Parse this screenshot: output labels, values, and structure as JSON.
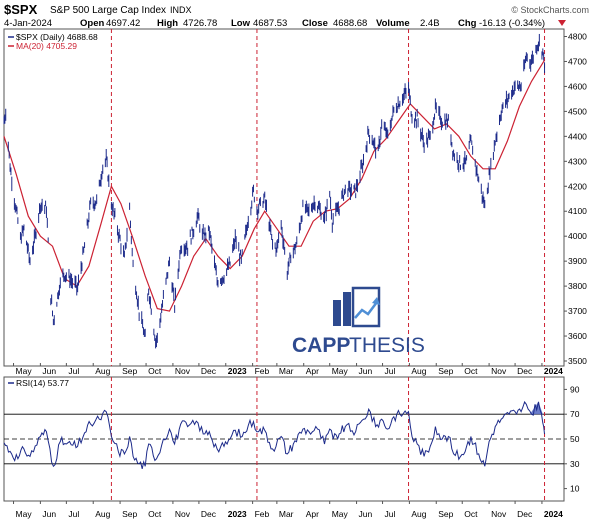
{
  "header": {
    "symbol": "$SPX",
    "name": "S&P 500 Large Cap Index",
    "exchange": "INDX",
    "source": "© StockCharts.com",
    "date": "4-Jan-2024",
    "open_label": "Open",
    "open": "4697.42",
    "high_label": "High",
    "high": "4726.78",
    "low_label": "Low",
    "low": "4687.53",
    "close_label": "Close",
    "close": "4688.68",
    "volume_label": "Volume",
    "volume": "2.4B",
    "chg_label": "Chg",
    "chg": "-16.13 (-0.34%)"
  },
  "legend": {
    "price": "$SPX (Daily) 4688.68",
    "ma": "MA(20) 4705.29",
    "rsi": "RSI(14) 53.77"
  },
  "watermark": {
    "text_bold": "CAPP",
    "text_light": "THESIS",
    "color": "#2e4a8f"
  },
  "colors": {
    "price": "#1c2a8a",
    "ma": "#cc2233",
    "rsi": "#1c2a8a",
    "rsi_fill": "#5b6fc4",
    "divider": "#cc2233"
  },
  "chart_data": [
    {
      "type": "line",
      "title": "$SPX S&P 500 Large Cap Index",
      "series_name": "$SPX (Daily)",
      "ma_name": "MA(20)",
      "ylim": [
        3480,
        4830
      ],
      "yticks": [
        3500,
        3600,
        3700,
        3800,
        3900,
        4000,
        4100,
        4200,
        4300,
        4400,
        4500,
        4600,
        4700,
        4800
      ],
      "xlabels": [
        {
          "label": "May",
          "date": "2022-05-01",
          "bold": false
        },
        {
          "label": "Jun",
          "date": "2022-06-01",
          "bold": false
        },
        {
          "label": "Jul",
          "date": "2022-07-01",
          "bold": false
        },
        {
          "label": "Aug",
          "date": "2022-08-01",
          "bold": false
        },
        {
          "label": "Sep",
          "date": "2022-09-01",
          "bold": false
        },
        {
          "label": "Oct",
          "date": "2022-10-01",
          "bold": false
        },
        {
          "label": "Nov",
          "date": "2022-11-01",
          "bold": false
        },
        {
          "label": "Dec",
          "date": "2022-12-01",
          "bold": false
        },
        {
          "label": "2023",
          "date": "2023-01-01",
          "bold": true
        },
        {
          "label": "Feb",
          "date": "2023-02-01",
          "bold": false
        },
        {
          "label": "Mar",
          "date": "2023-03-01",
          "bold": false
        },
        {
          "label": "Apr",
          "date": "2023-04-01",
          "bold": false
        },
        {
          "label": "May",
          "date": "2023-05-01",
          "bold": false
        },
        {
          "label": "Jun",
          "date": "2023-06-01",
          "bold": false
        },
        {
          "label": "Jul",
          "date": "2023-07-01",
          "bold": false
        },
        {
          "label": "Aug",
          "date": "2023-08-01",
          "bold": false
        },
        {
          "label": "Sep",
          "date": "2023-09-01",
          "bold": false
        },
        {
          "label": "Oct",
          "date": "2023-10-01",
          "bold": false
        },
        {
          "label": "Nov",
          "date": "2023-11-01",
          "bold": false
        },
        {
          "label": "Dec",
          "date": "2023-12-01",
          "bold": false
        },
        {
          "label": "2024",
          "date": "2024-01-01",
          "bold": true
        }
      ],
      "xlim": [
        "2022-04-20",
        "2024-01-08"
      ],
      "dividers": [
        "2022-08-22",
        "2023-02-06",
        "2023-07-31",
        "2024-01-04"
      ],
      "price_points": [
        [
          "2022-04-20",
          4460
        ],
        [
          "2022-04-22",
          4500
        ],
        [
          "2022-04-27",
          4280
        ],
        [
          "2022-05-02",
          4150
        ],
        [
          "2022-05-09",
          3990
        ],
        [
          "2022-05-13",
          4030
        ],
        [
          "2022-05-20",
          3900
        ],
        [
          "2022-05-25",
          3980
        ],
        [
          "2022-06-01",
          4130
        ],
        [
          "2022-06-08",
          4110
        ],
        [
          "2022-06-13",
          3760
        ],
        [
          "2022-06-16",
          3660
        ],
        [
          "2022-06-23",
          3800
        ],
        [
          "2022-06-28",
          3850
        ],
        [
          "2022-07-05",
          3830
        ],
        [
          "2022-07-14",
          3790
        ],
        [
          "2022-07-22",
          3960
        ],
        [
          "2022-07-29",
          4130
        ],
        [
          "2022-08-05",
          4140
        ],
        [
          "2022-08-12",
          4280
        ],
        [
          "2022-08-16",
          4305
        ],
        [
          "2022-08-22",
          4130
        ],
        [
          "2022-08-29",
          4030
        ],
        [
          "2022-09-06",
          3910
        ],
        [
          "2022-09-12",
          4110
        ],
        [
          "2022-09-16",
          3880
        ],
        [
          "2022-09-23",
          3700
        ],
        [
          "2022-09-30",
          3590
        ],
        [
          "2022-10-04",
          3790
        ],
        [
          "2022-10-12",
          3580
        ],
        [
          "2022-10-14",
          3590
        ],
        [
          "2022-10-21",
          3750
        ],
        [
          "2022-10-28",
          3900
        ],
        [
          "2022-11-03",
          3720
        ],
        [
          "2022-11-10",
          3960
        ],
        [
          "2022-11-18",
          3960
        ],
        [
          "2022-11-30",
          4080
        ],
        [
          "2022-12-05",
          4000
        ],
        [
          "2022-12-13",
          4020
        ],
        [
          "2022-12-22",
          3820
        ],
        [
          "2022-12-30",
          3840
        ],
        [
          "2023-01-06",
          3890
        ],
        [
          "2023-01-12",
          3990
        ],
        [
          "2023-01-19",
          3900
        ],
        [
          "2023-01-27",
          4070
        ],
        [
          "2023-02-02",
          4180
        ],
        [
          "2023-02-06",
          4110
        ],
        [
          "2023-02-15",
          4150
        ],
        [
          "2023-02-24",
          3970
        ],
        [
          "2023-03-01",
          3950
        ],
        [
          "2023-03-06",
          4050
        ],
        [
          "2023-03-13",
          3855
        ],
        [
          "2023-03-17",
          3920
        ],
        [
          "2023-03-24",
          3970
        ],
        [
          "2023-03-31",
          4110
        ],
        [
          "2023-04-07",
          4100
        ],
        [
          "2023-04-14",
          4140
        ],
        [
          "2023-04-25",
          4070
        ],
        [
          "2023-05-01",
          4170
        ],
        [
          "2023-05-04",
          4060
        ],
        [
          "2023-05-12",
          4120
        ],
        [
          "2023-05-19",
          4190
        ],
        [
          "2023-05-31",
          4180
        ],
        [
          "2023-06-09",
          4300
        ],
        [
          "2023-06-15",
          4420
        ],
        [
          "2023-06-26",
          4330
        ],
        [
          "2023-06-30",
          4450
        ],
        [
          "2023-07-07",
          4400
        ],
        [
          "2023-07-14",
          4505
        ],
        [
          "2023-07-21",
          4540
        ],
        [
          "2023-07-31",
          4590
        ],
        [
          "2023-08-04",
          4480
        ],
        [
          "2023-08-10",
          4470
        ],
        [
          "2023-08-18",
          4370
        ],
        [
          "2023-08-25",
          4400
        ],
        [
          "2023-08-31",
          4510
        ],
        [
          "2023-09-08",
          4460
        ],
        [
          "2023-09-15",
          4460
        ],
        [
          "2023-09-21",
          4330
        ],
        [
          "2023-09-29",
          4290
        ],
        [
          "2023-10-06",
          4300
        ],
        [
          "2023-10-11",
          4380
        ],
        [
          "2023-10-20",
          4225
        ],
        [
          "2023-10-27",
          4120
        ],
        [
          "2023-11-01",
          4240
        ],
        [
          "2023-11-08",
          4380
        ],
        [
          "2023-11-15",
          4500
        ],
        [
          "2023-11-24",
          4560
        ],
        [
          "2023-12-01",
          4600
        ],
        [
          "2023-12-08",
          4600
        ],
        [
          "2023-12-14",
          4720
        ],
        [
          "2023-12-20",
          4700
        ],
        [
          "2023-12-28",
          4780
        ],
        [
          "2024-01-02",
          4740
        ],
        [
          "2024-01-04",
          4690
        ]
      ],
      "ma_points": [
        [
          "2022-04-20",
          4400
        ],
        [
          "2022-05-04",
          4250
        ],
        [
          "2022-05-18",
          4080
        ],
        [
          "2022-06-01",
          4000
        ],
        [
          "2022-06-15",
          3960
        ],
        [
          "2022-06-29",
          3830
        ],
        [
          "2022-07-13",
          3800
        ],
        [
          "2022-07-27",
          3880
        ],
        [
          "2022-08-10",
          4050
        ],
        [
          "2022-08-22",
          4200
        ],
        [
          "2022-09-02",
          4130
        ],
        [
          "2022-09-16",
          3990
        ],
        [
          "2022-09-30",
          3840
        ],
        [
          "2022-10-14",
          3710
        ],
        [
          "2022-10-28",
          3700
        ],
        [
          "2022-11-11",
          3800
        ],
        [
          "2022-11-25",
          3920
        ],
        [
          "2022-12-09",
          3990
        ],
        [
          "2022-12-23",
          3920
        ],
        [
          "2023-01-06",
          3870
        ],
        [
          "2023-01-20",
          3920
        ],
        [
          "2023-02-03",
          4030
        ],
        [
          "2023-02-15",
          4100
        ],
        [
          "2023-03-01",
          4030
        ],
        [
          "2023-03-15",
          3960
        ],
        [
          "2023-03-29",
          3960
        ],
        [
          "2023-04-12",
          4060
        ],
        [
          "2023-04-26",
          4100
        ],
        [
          "2023-05-10",
          4110
        ],
        [
          "2023-05-24",
          4150
        ],
        [
          "2023-06-07",
          4230
        ],
        [
          "2023-06-21",
          4340
        ],
        [
          "2023-07-05",
          4390
        ],
        [
          "2023-07-19",
          4460
        ],
        [
          "2023-08-02",
          4530
        ],
        [
          "2023-08-16",
          4480
        ],
        [
          "2023-08-30",
          4430
        ],
        [
          "2023-09-13",
          4450
        ],
        [
          "2023-09-27",
          4400
        ],
        [
          "2023-10-11",
          4320
        ],
        [
          "2023-10-25",
          4270
        ],
        [
          "2023-11-08",
          4270
        ],
        [
          "2023-11-22",
          4380
        ],
        [
          "2023-12-06",
          4520
        ],
        [
          "2023-12-20",
          4620
        ],
        [
          "2024-01-04",
          4705
        ]
      ]
    },
    {
      "type": "line",
      "title": "RSI(14)",
      "ylim": [
        0,
        100
      ],
      "yticks": [
        10,
        30,
        50,
        70,
        90
      ],
      "reference_lines": [
        70,
        50,
        30
      ],
      "points": [
        [
          "2022-04-20",
          47
        ],
        [
          "2022-04-27",
          40
        ],
        [
          "2022-05-06",
          34
        ],
        [
          "2022-05-13",
          42
        ],
        [
          "2022-05-20",
          36
        ],
        [
          "2022-06-01",
          52
        ],
        [
          "2022-06-08",
          56
        ],
        [
          "2022-06-16",
          28
        ],
        [
          "2022-06-24",
          48
        ],
        [
          "2022-07-01",
          46
        ],
        [
          "2022-07-14",
          44
        ],
        [
          "2022-07-22",
          55
        ],
        [
          "2022-07-29",
          62
        ],
        [
          "2022-08-08",
          66
        ],
        [
          "2022-08-16",
          72
        ],
        [
          "2022-08-22",
          52
        ],
        [
          "2022-08-30",
          40
        ],
        [
          "2022-09-06",
          38
        ],
        [
          "2022-09-12",
          52
        ],
        [
          "2022-09-16",
          36
        ],
        [
          "2022-09-23",
          30
        ],
        [
          "2022-09-30",
          28
        ],
        [
          "2022-10-04",
          46
        ],
        [
          "2022-10-13",
          34
        ],
        [
          "2022-10-21",
          50
        ],
        [
          "2022-10-28",
          58
        ],
        [
          "2022-11-03",
          46
        ],
        [
          "2022-11-10",
          62
        ],
        [
          "2022-11-18",
          60
        ],
        [
          "2022-11-30",
          63
        ],
        [
          "2022-12-06",
          54
        ],
        [
          "2022-12-13",
          56
        ],
        [
          "2022-12-22",
          42
        ],
        [
          "2022-12-30",
          44
        ],
        [
          "2023-01-06",
          50
        ],
        [
          "2023-01-12",
          57
        ],
        [
          "2023-01-20",
          52
        ],
        [
          "2023-01-27",
          61
        ],
        [
          "2023-02-02",
          64
        ],
        [
          "2023-02-08",
          56
        ],
        [
          "2023-02-15",
          57
        ],
        [
          "2023-02-24",
          42
        ],
        [
          "2023-03-06",
          52
        ],
        [
          "2023-03-13",
          38
        ],
        [
          "2023-03-20",
          46
        ],
        [
          "2023-03-31",
          58
        ],
        [
          "2023-04-07",
          56
        ],
        [
          "2023-04-17",
          58
        ],
        [
          "2023-04-25",
          46
        ],
        [
          "2023-05-01",
          58
        ],
        [
          "2023-05-05",
          50
        ],
        [
          "2023-05-12",
          54
        ],
        [
          "2023-05-19",
          60
        ],
        [
          "2023-05-31",
          56
        ],
        [
          "2023-06-09",
          66
        ],
        [
          "2023-06-15",
          74
        ],
        [
          "2023-06-23",
          60
        ],
        [
          "2023-06-30",
          66
        ],
        [
          "2023-07-07",
          58
        ],
        [
          "2023-07-14",
          68
        ],
        [
          "2023-07-21",
          70
        ],
        [
          "2023-07-31",
          72
        ],
        [
          "2023-08-04",
          52
        ],
        [
          "2023-08-10",
          46
        ],
        [
          "2023-08-18",
          36
        ],
        [
          "2023-08-25",
          44
        ],
        [
          "2023-08-31",
          60
        ],
        [
          "2023-09-08",
          50
        ],
        [
          "2023-09-15",
          52
        ],
        [
          "2023-09-21",
          38
        ],
        [
          "2023-09-29",
          36
        ],
        [
          "2023-10-06",
          44
        ],
        [
          "2023-10-11",
          52
        ],
        [
          "2023-10-20",
          38
        ],
        [
          "2023-10-27",
          28
        ],
        [
          "2023-11-01",
          48
        ],
        [
          "2023-11-08",
          60
        ],
        [
          "2023-11-15",
          66
        ],
        [
          "2023-11-24",
          70
        ],
        [
          "2023-12-01",
          72
        ],
        [
          "2023-12-08",
          72
        ],
        [
          "2023-12-14",
          78
        ],
        [
          "2023-12-20",
          70
        ],
        [
          "2023-12-28",
          80
        ],
        [
          "2024-01-02",
          63
        ],
        [
          "2024-01-04",
          54
        ]
      ]
    }
  ]
}
